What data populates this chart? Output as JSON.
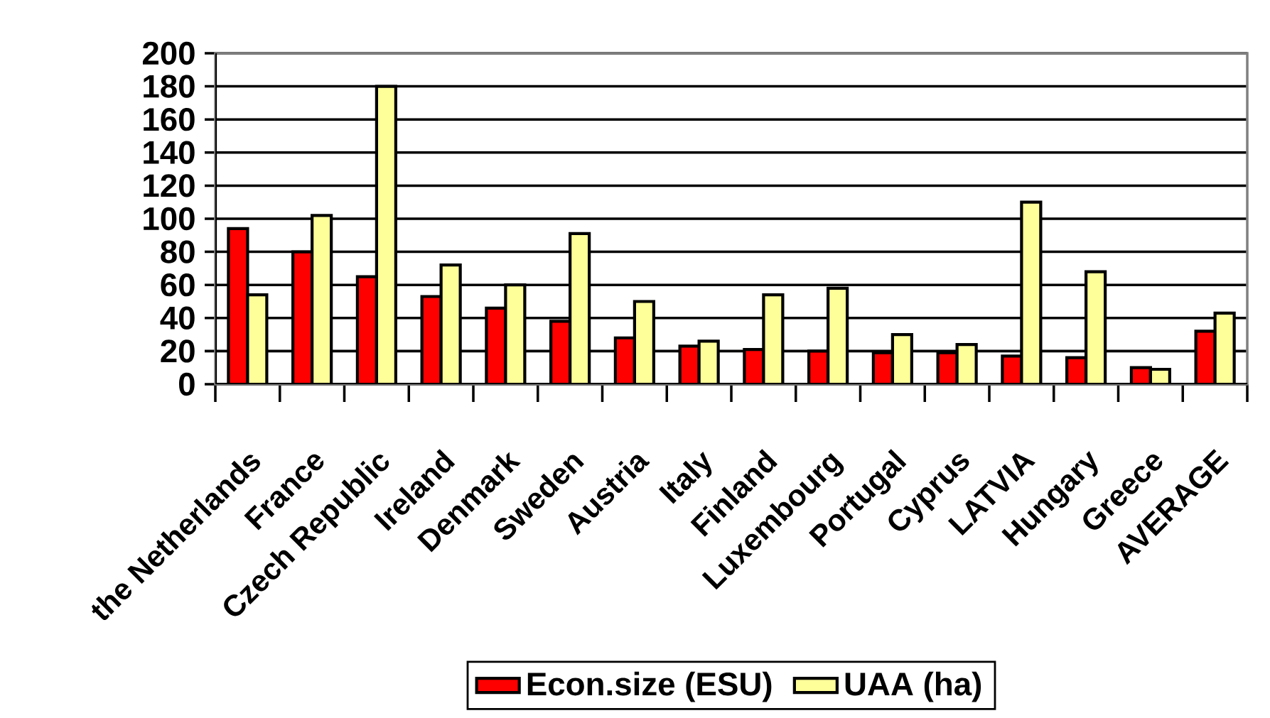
{
  "chart_data": {
    "type": "bar",
    "categories": [
      "the Netherlands",
      "France",
      "Czech Republic",
      "Ireland",
      "Denmark",
      "Sweden",
      "Austria",
      "Italy",
      "Finland",
      "Luxembourg",
      "Portugal",
      "Cyprus",
      "LATVIA",
      "Hungary",
      "Greece",
      "AVERAGE"
    ],
    "series": [
      {
        "name": "Econ.size (ESU)",
        "color": "#ff0000",
        "values": [
          94,
          80,
          65,
          53,
          46,
          38,
          28,
          23,
          21,
          20,
          19,
          19,
          17,
          16,
          10,
          32
        ]
      },
      {
        "name": "UAA (ha)",
        "color": "#ffff99",
        "values": [
          54,
          102,
          180,
          72,
          60,
          91,
          50,
          26,
          54,
          58,
          30,
          24,
          110,
          68,
          9,
          43
        ]
      }
    ],
    "ylim": [
      0,
      200
    ],
    "yticks": [
      0,
      20,
      40,
      60,
      80,
      100,
      120,
      140,
      160,
      180,
      200
    ],
    "grid": "y",
    "legend": "bottom"
  }
}
